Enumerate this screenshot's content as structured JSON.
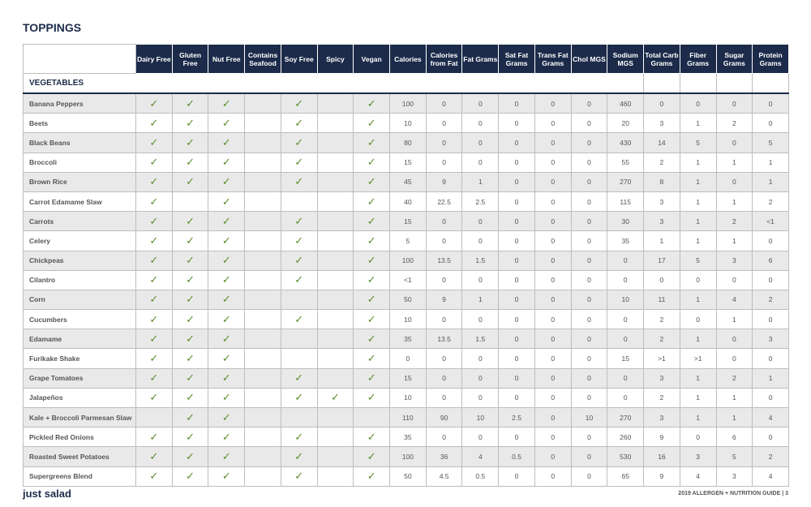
{
  "header": {
    "title": "TOPPINGS"
  },
  "table": {
    "columns": [
      "Dairy Free",
      "Gluten Free",
      "Nut Free",
      "Contains Seafood",
      "Soy Free",
      "Spicy",
      "Vegan",
      "Calories",
      "Calories from Fat",
      "Fat Grams",
      "Sat Fat Grams",
      "Trans Fat Grams",
      "Chol MGS",
      "Sodium MGS",
      "Total Carb Grams",
      "Fiber Grams",
      "Sugar Grams",
      "Protein Grams"
    ],
    "section": "VEGETABLES",
    "rows": [
      {
        "name": "Banana Peppers",
        "cells": [
          "✓",
          "✓",
          "✓",
          null,
          "✓",
          null,
          "✓",
          100,
          0,
          0,
          0,
          0,
          0,
          460,
          0,
          0,
          0,
          0
        ]
      },
      {
        "name": "Beets",
        "cells": [
          "✓",
          "✓",
          "✓",
          null,
          "✓",
          null,
          "✓",
          10,
          0,
          0,
          0,
          0,
          0,
          20,
          3,
          1,
          2,
          0
        ]
      },
      {
        "name": "Black Beans",
        "cells": [
          "✓",
          "✓",
          "✓",
          null,
          "✓",
          null,
          "✓",
          80,
          0,
          0,
          0,
          0,
          0,
          430,
          14,
          5,
          0,
          5
        ]
      },
      {
        "name": "Broccoli",
        "cells": [
          "✓",
          "✓",
          "✓",
          null,
          "✓",
          null,
          "✓",
          15,
          0,
          0,
          0,
          0,
          0,
          55,
          2,
          1,
          1,
          1
        ]
      },
      {
        "name": "Brown Rice",
        "cells": [
          "✓",
          "✓",
          "✓",
          null,
          "✓",
          null,
          "✓",
          45,
          9,
          1,
          0,
          0,
          0,
          270,
          8,
          1,
          0,
          1
        ]
      },
      {
        "name": "Carrot Edamame Slaw",
        "cells": [
          "✓",
          null,
          "✓",
          null,
          null,
          null,
          "✓",
          40,
          22.5,
          2.5,
          0,
          0,
          0,
          115,
          3,
          1,
          1,
          2
        ]
      },
      {
        "name": "Carrots",
        "cells": [
          "✓",
          "✓",
          "✓",
          null,
          "✓",
          null,
          "✓",
          15,
          0,
          0,
          0,
          0,
          0,
          30,
          3,
          1,
          2,
          "<1"
        ]
      },
      {
        "name": "Celery",
        "cells": [
          "✓",
          "✓",
          "✓",
          null,
          "✓",
          null,
          "✓",
          5,
          0,
          0,
          0,
          0,
          0,
          35,
          1,
          1,
          1,
          0
        ]
      },
      {
        "name": "Chickpeas",
        "cells": [
          "✓",
          "✓",
          "✓",
          null,
          "✓",
          null,
          "✓",
          100,
          13.5,
          1.5,
          0,
          0,
          0,
          0,
          17,
          5,
          3,
          6
        ]
      },
      {
        "name": "Cilantro",
        "cells": [
          "✓",
          "✓",
          "✓",
          null,
          "✓",
          null,
          "✓",
          "<1",
          0,
          0,
          0,
          0,
          0,
          0,
          0,
          0,
          0,
          0
        ]
      },
      {
        "name": "Corn",
        "cells": [
          "✓",
          "✓",
          "✓",
          null,
          null,
          null,
          "✓",
          50,
          9,
          1,
          0,
          0,
          0,
          10,
          11,
          1,
          4,
          2
        ]
      },
      {
        "name": "Cucumbers",
        "cells": [
          "✓",
          "✓",
          "✓",
          null,
          "✓",
          null,
          "✓",
          10,
          0,
          0,
          0,
          0,
          0,
          0,
          2,
          0,
          1,
          0
        ]
      },
      {
        "name": "Edamame",
        "cells": [
          "✓",
          "✓",
          "✓",
          null,
          null,
          null,
          "✓",
          35,
          13.5,
          1.5,
          0,
          0,
          0,
          0,
          2,
          1,
          0,
          3
        ]
      },
      {
        "name": "Furikake Shake",
        "cells": [
          "✓",
          "✓",
          "✓",
          null,
          null,
          null,
          "✓",
          0,
          0,
          0,
          0,
          0,
          0,
          15,
          ">1",
          ">1",
          0,
          0
        ]
      },
      {
        "name": "Grape Tomatoes",
        "cells": [
          "✓",
          "✓",
          "✓",
          null,
          "✓",
          null,
          "✓",
          15,
          0,
          0,
          0,
          0,
          0,
          0,
          3,
          1,
          2,
          1
        ]
      },
      {
        "name": "Jalapeños",
        "cells": [
          "✓",
          "✓",
          "✓",
          null,
          "✓",
          "✓",
          "✓",
          10,
          0,
          0,
          0,
          0,
          0,
          0,
          2,
          1,
          1,
          0
        ]
      },
      {
        "name": "Kale + Broccoli Parmesan Slaw",
        "cells": [
          null,
          "✓",
          "✓",
          null,
          null,
          null,
          null,
          110,
          90,
          10,
          2.5,
          0,
          10,
          270,
          3,
          1,
          1,
          4
        ]
      },
      {
        "name": "Pickled Red Onions",
        "cells": [
          "✓",
          "✓",
          "✓",
          null,
          "✓",
          null,
          "✓",
          35,
          0,
          0,
          0,
          0,
          0,
          260,
          9,
          0,
          6,
          0
        ]
      },
      {
        "name": "Roasted Sweet Potatoes",
        "cells": [
          "✓",
          "✓",
          "✓",
          null,
          "✓",
          null,
          "✓",
          100,
          36,
          4,
          0.5,
          0,
          0,
          530,
          16,
          3,
          5,
          2
        ]
      },
      {
        "name": "Supergreens Blend",
        "cells": [
          "✓",
          "✓",
          "✓",
          null,
          "✓",
          null,
          "✓",
          50,
          4.5,
          0.5,
          0,
          0,
          0,
          65,
          9,
          4,
          3,
          4
        ]
      }
    ]
  },
  "footer": {
    "logo": "just salad",
    "guide": "2019 ALLERGEN + NUTRITION GUIDE | 3"
  }
}
